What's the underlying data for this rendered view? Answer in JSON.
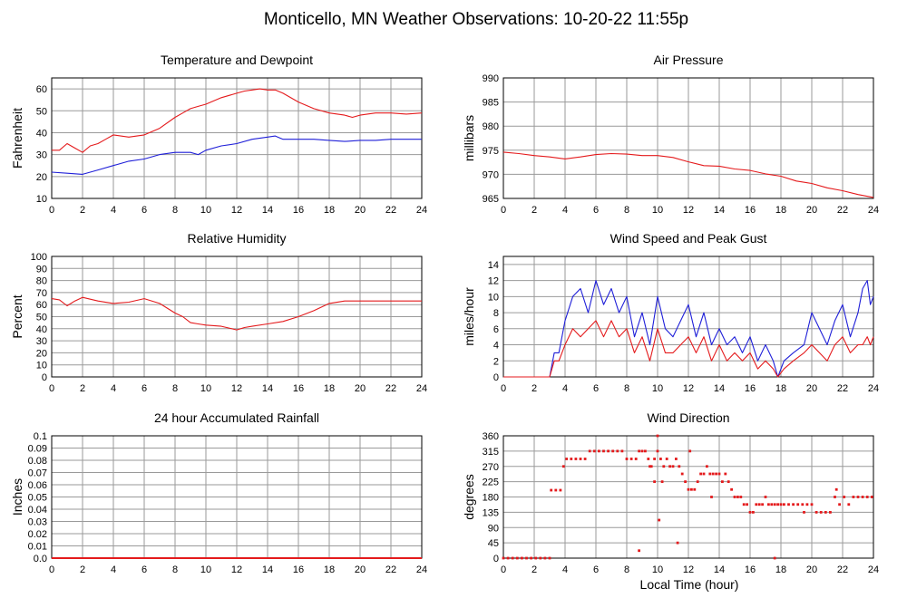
{
  "page": {
    "title": "Monticello, MN Weather Observations: 10-20-22 11:55p",
    "xlabel": "Local Time (hour)"
  },
  "colors": {
    "red": "#e41a1c",
    "blue": "#1f1fd8",
    "grid": "#9a9a9a"
  },
  "chart_data": [
    {
      "type": "line",
      "title": "Temperature and Dewpoint",
      "xlabel": "",
      "ylabel": "Fahrenheit",
      "xlim": [
        0,
        24
      ],
      "ylim": [
        10,
        65
      ],
      "xticks": [
        0,
        2,
        4,
        6,
        8,
        10,
        12,
        14,
        16,
        18,
        20,
        22,
        24
      ],
      "yticks": [
        10,
        20,
        30,
        40,
        50,
        60
      ],
      "grid": true,
      "series": [
        {
          "color": "#e41a1c",
          "x": [
            0,
            0.5,
            1,
            1.5,
            2,
            2.5,
            3,
            3.5,
            4,
            5,
            6,
            7,
            8,
            8.5,
            9,
            9.5,
            10,
            11,
            12,
            12.5,
            13,
            13.5,
            14,
            14.5,
            15,
            16,
            17,
            18,
            19,
            19.5,
            20,
            21,
            22,
            23,
            24
          ],
          "values": [
            32,
            32,
            35,
            33,
            31,
            34,
            35,
            37,
            39,
            38,
            39,
            42,
            47,
            49,
            51,
            52,
            53,
            56,
            58,
            59,
            59.5,
            60,
            59.5,
            59.5,
            58,
            54,
            51,
            49,
            48,
            47,
            48,
            49,
            49,
            48.5,
            49
          ]
        },
        {
          "color": "#1f1fd8",
          "x": [
            0,
            1,
            2,
            3,
            4,
            5,
            6,
            7,
            8,
            9,
            9.5,
            10,
            11,
            12,
            13,
            14,
            14.5,
            15,
            16,
            17,
            18,
            19,
            20,
            21,
            22,
            23,
            24
          ],
          "values": [
            22,
            21.5,
            21,
            23,
            25,
            27,
            28,
            30,
            31,
            31,
            30,
            32,
            34,
            35,
            37,
            38,
            38.5,
            37,
            37,
            37,
            36.5,
            36,
            36.5,
            36.5,
            37,
            37,
            37
          ]
        }
      ]
    },
    {
      "type": "line",
      "title": "Air Pressure",
      "xlabel": "",
      "ylabel": "millibars",
      "xlim": [
        0,
        24
      ],
      "ylim": [
        965,
        990
      ],
      "xticks": [
        0,
        2,
        4,
        6,
        8,
        10,
        12,
        14,
        16,
        18,
        20,
        22,
        24
      ],
      "yticks": [
        965,
        970,
        975,
        980,
        985,
        990
      ],
      "grid": true,
      "series": [
        {
          "color": "#e41a1c",
          "x": [
            0,
            1,
            2,
            3,
            4,
            5,
            6,
            7,
            8,
            9,
            10,
            11,
            12,
            13,
            14,
            15,
            16,
            17,
            18,
            19,
            20,
            21,
            22,
            23,
            24
          ],
          "values": [
            974.6,
            974.3,
            973.9,
            973.6,
            973.2,
            973.6,
            974.1,
            974.3,
            974.2,
            973.9,
            973.9,
            973.5,
            972.6,
            971.8,
            971.7,
            971.1,
            970.8,
            970.1,
            969.6,
            968.6,
            968.1,
            967.2,
            966.6,
            965.8,
            965.2
          ]
        }
      ]
    },
    {
      "type": "line",
      "title": "Relative Humidity",
      "xlabel": "",
      "ylabel": "Percent",
      "xlim": [
        0,
        24
      ],
      "ylim": [
        0,
        100
      ],
      "xticks": [
        0,
        2,
        4,
        6,
        8,
        10,
        12,
        14,
        16,
        18,
        20,
        22,
        24
      ],
      "yticks": [
        0,
        10,
        20,
        30,
        40,
        50,
        60,
        70,
        80,
        90,
        100
      ],
      "grid": true,
      "series": [
        {
          "color": "#e41a1c",
          "x": [
            0,
            0.5,
            1,
            1.5,
            2,
            3,
            4,
            5,
            6,
            7,
            8,
            8.5,
            9,
            9.5,
            10,
            11,
            12,
            12.5,
            13,
            14,
            15,
            16,
            17,
            18,
            19,
            20,
            21,
            22,
            23,
            24
          ],
          "values": [
            65,
            64,
            59,
            63,
            66,
            63,
            61,
            62,
            65,
            61,
            53,
            50,
            45,
            44,
            43,
            42,
            39,
            41,
            42,
            44,
            46,
            50,
            55,
            61,
            63,
            63,
            63,
            63,
            63,
            63
          ]
        }
      ]
    },
    {
      "type": "line",
      "title": "Wind Speed and Peak Gust",
      "xlabel": "",
      "ylabel": "miles/hour",
      "xlim": [
        0,
        24
      ],
      "ylim": [
        0,
        15
      ],
      "xticks": [
        0,
        2,
        4,
        6,
        8,
        10,
        12,
        14,
        16,
        18,
        20,
        22,
        24
      ],
      "yticks": [
        0,
        2,
        4,
        6,
        8,
        10,
        12,
        14
      ],
      "grid": true,
      "series": [
        {
          "color": "#1f1fd8",
          "x": [
            0,
            3,
            3.3,
            3.6,
            4,
            4.5,
            5,
            5.5,
            6,
            6.5,
            7,
            7.5,
            8,
            8.5,
            9,
            9.5,
            10,
            10.5,
            11,
            11.5,
            12,
            12.5,
            13,
            13.5,
            14,
            14.5,
            15,
            15.5,
            16,
            16.5,
            17,
            17.5,
            17.8,
            18.2,
            18.8,
            19.5,
            20,
            20.5,
            21,
            21.5,
            22,
            22.5,
            23,
            23.3,
            23.6,
            23.8,
            24
          ],
          "values": [
            0,
            0,
            3,
            3,
            7,
            10,
            11,
            8,
            12,
            9,
            11,
            8,
            10,
            5,
            8,
            4,
            10,
            6,
            5,
            7,
            9,
            5,
            8,
            4,
            6,
            4,
            5,
            3,
            5,
            2,
            4,
            2,
            0,
            2,
            3,
            4,
            8,
            6,
            4,
            7,
            9,
            5,
            8,
            11,
            12,
            9,
            10
          ]
        },
        {
          "color": "#e41a1c",
          "x": [
            0,
            3,
            3.3,
            3.6,
            4,
            4.5,
            5,
            5.5,
            6,
            6.5,
            7,
            7.5,
            8,
            8.5,
            9,
            9.5,
            10,
            10.5,
            11,
            11.5,
            12,
            12.5,
            13,
            13.5,
            14,
            14.5,
            15,
            15.5,
            16,
            16.5,
            17,
            17.5,
            17.8,
            18.2,
            18.8,
            19.5,
            20,
            20.5,
            21,
            21.5,
            22,
            22.5,
            23,
            23.3,
            23.6,
            23.8,
            24
          ],
          "values": [
            0,
            0,
            2,
            2,
            4,
            6,
            5,
            6,
            7,
            5,
            7,
            5,
            6,
            3,
            5,
            2,
            6,
            3,
            3,
            4,
            5,
            3,
            5,
            2,
            4,
            2,
            3,
            2,
            3,
            1,
            2,
            1,
            0,
            1,
            2,
            3,
            4,
            3,
            2,
            4,
            5,
            3,
            4,
            4,
            5,
            4,
            5
          ]
        }
      ]
    },
    {
      "type": "line",
      "title": "24 hour Accumulated Rainfall",
      "xlabel": "",
      "ylabel": "Inches",
      "xlim": [
        0,
        24
      ],
      "ylim": [
        0,
        0.1
      ],
      "xticks": [
        0,
        2,
        4,
        6,
        8,
        10,
        12,
        14,
        16,
        18,
        20,
        22,
        24
      ],
      "yticks": [
        0.0,
        0.01,
        0.02,
        0.03,
        0.04,
        0.05,
        0.06,
        0.07,
        0.08,
        0.09,
        0.1
      ],
      "yticklabels": [
        "0.0",
        "0.01",
        "0.02",
        "0.03",
        "0.04",
        "0.05",
        "0.06",
        "0.07",
        "0.08",
        "0.09",
        "0.1"
      ],
      "grid": true,
      "series": [
        {
          "color": "#e41a1c",
          "x": [
            0,
            24
          ],
          "values": [
            0,
            0
          ]
        }
      ]
    },
    {
      "type": "scatter",
      "title": "Wind Direction",
      "xlabel": "Local Time (hour)",
      "ylabel": "degrees",
      "xlim": [
        0,
        24
      ],
      "ylim": [
        0,
        360
      ],
      "xticks": [
        0,
        2,
        4,
        6,
        8,
        10,
        12,
        14,
        16,
        18,
        20,
        22,
        24
      ],
      "yticks": [
        0,
        45,
        90,
        135,
        180,
        225,
        270,
        315,
        360
      ],
      "grid": true,
      "series": [
        {
          "color": "#e41a1c",
          "x": [
            0,
            0.3,
            0.6,
            0.9,
            1.2,
            1.5,
            1.8,
            2.1,
            2.4,
            2.7,
            3.0,
            3.1,
            3.4,
            3.7,
            3.9,
            4.1,
            4.4,
            4.7,
            5.0,
            5.3,
            5.6,
            5.9,
            6.2,
            6.5,
            6.8,
            7.1,
            7.4,
            7.7,
            8.0,
            8.3,
            8.6,
            8.8,
            9.0,
            9.2,
            9.4,
            9.6,
            9.8,
            10.0,
            10.2,
            10.4,
            10.6,
            10.8,
            11.0,
            11.2,
            11.4,
            11.6,
            11.8,
            12.0,
            12.2,
            12.4,
            12.6,
            12.8,
            13.0,
            13.2,
            13.4,
            13.6,
            13.8,
            14.0,
            14.2,
            14.4,
            14.6,
            14.8,
            15.0,
            15.2,
            15.4,
            15.6,
            15.8,
            16.0,
            16.2,
            16.4,
            16.6,
            16.8,
            17.0,
            17.2,
            17.4,
            17.6,
            17.8,
            18.0,
            18.2,
            18.5,
            18.8,
            19.1,
            19.4,
            19.7,
            20.0,
            20.3,
            20.6,
            20.9,
            21.2,
            21.5,
            21.8,
            22.1,
            22.4,
            22.7,
            23.0,
            23.3,
            23.6,
            23.9,
            8.8,
            9.5,
            10.0,
            10.1,
            11.3,
            10.3,
            12.1,
            13.5,
            17.6,
            21.6,
            9.8,
            19.5
          ],
          "values": [
            0,
            0,
            0,
            0,
            0,
            0,
            0,
            0,
            0,
            0,
            0,
            200,
            200,
            200,
            270,
            292,
            292,
            292,
            292,
            292,
            315,
            315,
            315,
            315,
            315,
            315,
            315,
            315,
            292,
            292,
            292,
            315,
            315,
            315,
            292,
            270,
            292,
            315,
            292,
            270,
            292,
            270,
            270,
            292,
            270,
            248,
            225,
            202,
            202,
            202,
            225,
            248,
            248,
            270,
            248,
            248,
            248,
            248,
            225,
            248,
            225,
            202,
            180,
            180,
            180,
            158,
            158,
            135,
            135,
            158,
            158,
            158,
            180,
            158,
            158,
            158,
            158,
            158,
            158,
            158,
            158,
            158,
            158,
            158,
            158,
            135,
            135,
            135,
            135,
            180,
            158,
            180,
            158,
            180,
            180,
            180,
            180,
            180,
            22,
            270,
            360,
            112,
            45,
            225,
            315,
            180,
            0,
            202,
            225,
            135
          ]
        }
      ]
    }
  ]
}
